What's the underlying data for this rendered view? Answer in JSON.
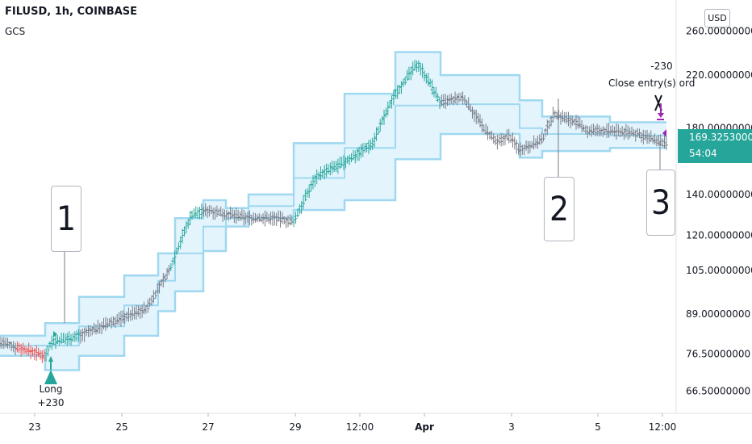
{
  "header": {
    "title": "FILUSD, 1h, COINBASE",
    "indicator": "GCS"
  },
  "currency": "USD",
  "price_tag": {
    "price": "169.32530000",
    "countdown": "54:04"
  },
  "y_axis": {
    "scale": "log",
    "ticks": [
      {
        "value": 260,
        "label": "260.00000000"
      },
      {
        "value": 220,
        "label": "220.00000000"
      },
      {
        "value": 180,
        "label": "180.00000000"
      },
      {
        "value": 140,
        "label": "140.00000000"
      },
      {
        "value": 120,
        "label": "120.00000000"
      },
      {
        "value": 105,
        "label": "105.00000000"
      },
      {
        "value": 89,
        "label": "89.00000000"
      },
      {
        "value": 76.5,
        "label": "76.50000000"
      },
      {
        "value": 66.5,
        "label": "66.50000000"
      }
    ]
  },
  "x_axis": {
    "labels": [
      "23",
      "25",
      "27",
      "29",
      "12:00",
      "Apr",
      "3",
      "5",
      "12:00"
    ]
  },
  "callouts": [
    "1",
    "2",
    "3"
  ],
  "signals": {
    "entry": {
      "label": "Long",
      "qty": "+230"
    },
    "exit": {
      "qty": "-230",
      "label": "Close entry(s) ord"
    }
  },
  "colors": {
    "up": "#26a69a",
    "down": "#ef5350",
    "neutral": "#787b86",
    "channel": "#9fd8f0",
    "channel_fill": "#e3f4fd",
    "exit": "#9c27b0"
  },
  "chart_data": {
    "type": "candlestick",
    "title": "FILUSD, 1h, COINBASE",
    "y_scale": "log",
    "ylim": [
      64,
      275
    ],
    "x_tick_labels": [
      "23",
      "25",
      "27",
      "29",
      "12:00",
      "Apr",
      "3",
      "5",
      "12:00"
    ],
    "series": [
      {
        "name": "GCS",
        "upper_band": [
          [
            0,
            82
          ],
          [
            8,
            82
          ],
          [
            8,
            86
          ],
          [
            14,
            86
          ],
          [
            14,
            95
          ],
          [
            22,
            95
          ],
          [
            22,
            103
          ],
          [
            28,
            103
          ],
          [
            28,
            112
          ],
          [
            31,
            112
          ],
          [
            31,
            128
          ],
          [
            36,
            128
          ],
          [
            36,
            137
          ],
          [
            40,
            137
          ],
          [
            40,
            133
          ],
          [
            44,
            133
          ],
          [
            44,
            140
          ],
          [
            52,
            140
          ],
          [
            52,
            170
          ],
          [
            61,
            170
          ],
          [
            61,
            205
          ],
          [
            70,
            205
          ],
          [
            70,
            240
          ],
          [
            78,
            240
          ],
          [
            78,
            220
          ],
          [
            92,
            220
          ],
          [
            92,
            200
          ],
          [
            96,
            200
          ],
          [
            96,
            188
          ],
          [
            108,
            188
          ],
          [
            108,
            184
          ],
          [
            118,
            184
          ]
        ],
        "lower_band": [
          [
            0,
            76
          ],
          [
            8,
            76
          ],
          [
            8,
            72
          ],
          [
            14,
            72
          ],
          [
            14,
            76
          ],
          [
            22,
            76
          ],
          [
            22,
            82
          ],
          [
            28,
            82
          ],
          [
            28,
            90
          ],
          [
            31,
            90
          ],
          [
            31,
            97
          ],
          [
            36,
            97
          ],
          [
            36,
            113
          ],
          [
            40,
            113
          ],
          [
            40,
            124
          ],
          [
            44,
            124
          ],
          [
            44,
            128
          ],
          [
            52,
            128
          ],
          [
            52,
            132
          ],
          [
            61,
            132
          ],
          [
            61,
            137
          ],
          [
            70,
            137
          ],
          [
            70,
            160
          ],
          [
            78,
            160
          ],
          [
            78,
            176
          ],
          [
            92,
            176
          ],
          [
            92,
            161
          ],
          [
            96,
            161
          ],
          [
            96,
            165
          ],
          [
            108,
            165
          ],
          [
            108,
            167
          ],
          [
            118,
            167
          ]
        ],
        "middle_band": [
          [
            0,
            79
          ],
          [
            8,
            79
          ],
          [
            8,
            79
          ],
          [
            14,
            79
          ],
          [
            14,
            85
          ],
          [
            22,
            85
          ],
          [
            22,
            92
          ],
          [
            28,
            92
          ],
          [
            28,
            101
          ],
          [
            31,
            101
          ],
          [
            31,
            112
          ],
          [
            36,
            112
          ],
          [
            36,
            124
          ],
          [
            40,
            124
          ],
          [
            40,
            128
          ],
          [
            44,
            128
          ],
          [
            44,
            134
          ],
          [
            52,
            134
          ],
          [
            52,
            149
          ],
          [
            61,
            149
          ],
          [
            61,
            167
          ],
          [
            70,
            167
          ],
          [
            70,
            196
          ],
          [
            78,
            196
          ],
          [
            78,
            197
          ],
          [
            92,
            197
          ],
          [
            92,
            180
          ],
          [
            96,
            180
          ],
          [
            96,
            176
          ],
          [
            108,
            176
          ],
          [
            108,
            175
          ],
          [
            118,
            175
          ]
        ]
      }
    ],
    "bars": {
      "up_segments": [
        [
          8,
          14
        ],
        [
          30,
          36
        ],
        [
          52,
          61
        ],
        [
          61,
          70
        ],
        [
          70,
          78
        ]
      ],
      "down_segments": [
        [
          3,
          8
        ]
      ],
      "key_prices": [
        [
          0,
          80
        ],
        [
          8,
          76
        ],
        [
          9,
          80
        ],
        [
          14,
          82
        ],
        [
          18,
          85
        ],
        [
          22,
          88
        ],
        [
          26,
          91
        ],
        [
          30,
          105
        ],
        [
          34,
          130
        ],
        [
          37,
          132
        ],
        [
          40,
          130
        ],
        [
          44,
          128
        ],
        [
          49,
          128
        ],
        [
          52,
          126
        ],
        [
          56,
          150
        ],
        [
          61,
          158
        ],
        [
          66,
          170
        ],
        [
          70,
          205
        ],
        [
          74,
          230
        ],
        [
          78,
          198
        ],
        [
          82,
          202
        ],
        [
          86,
          178
        ],
        [
          88,
          170
        ],
        [
          90,
          175
        ],
        [
          92,
          166
        ],
        [
          96,
          172
        ],
        [
          98,
          190
        ],
        [
          102,
          184
        ],
        [
          104,
          178
        ],
        [
          108,
          178
        ],
        [
          112,
          177
        ],
        [
          116,
          172
        ],
        [
          118,
          169.3
        ]
      ]
    },
    "markers": [
      {
        "type": "entry",
        "label": "Long",
        "qty": "+230",
        "x": 9,
        "price": 76
      },
      {
        "type": "exit",
        "label": "Close entry(s) ord",
        "qty": "-230",
        "x": 117,
        "price": 172
      }
    ],
    "annotations": [
      {
        "text": "1",
        "x": 10,
        "price": 90
      },
      {
        "text": "2",
        "x": 92,
        "price": 192
      },
      {
        "text": "3",
        "x": 117,
        "price": 175
      }
    ],
    "last_price": 169.3253,
    "grid": false
  }
}
